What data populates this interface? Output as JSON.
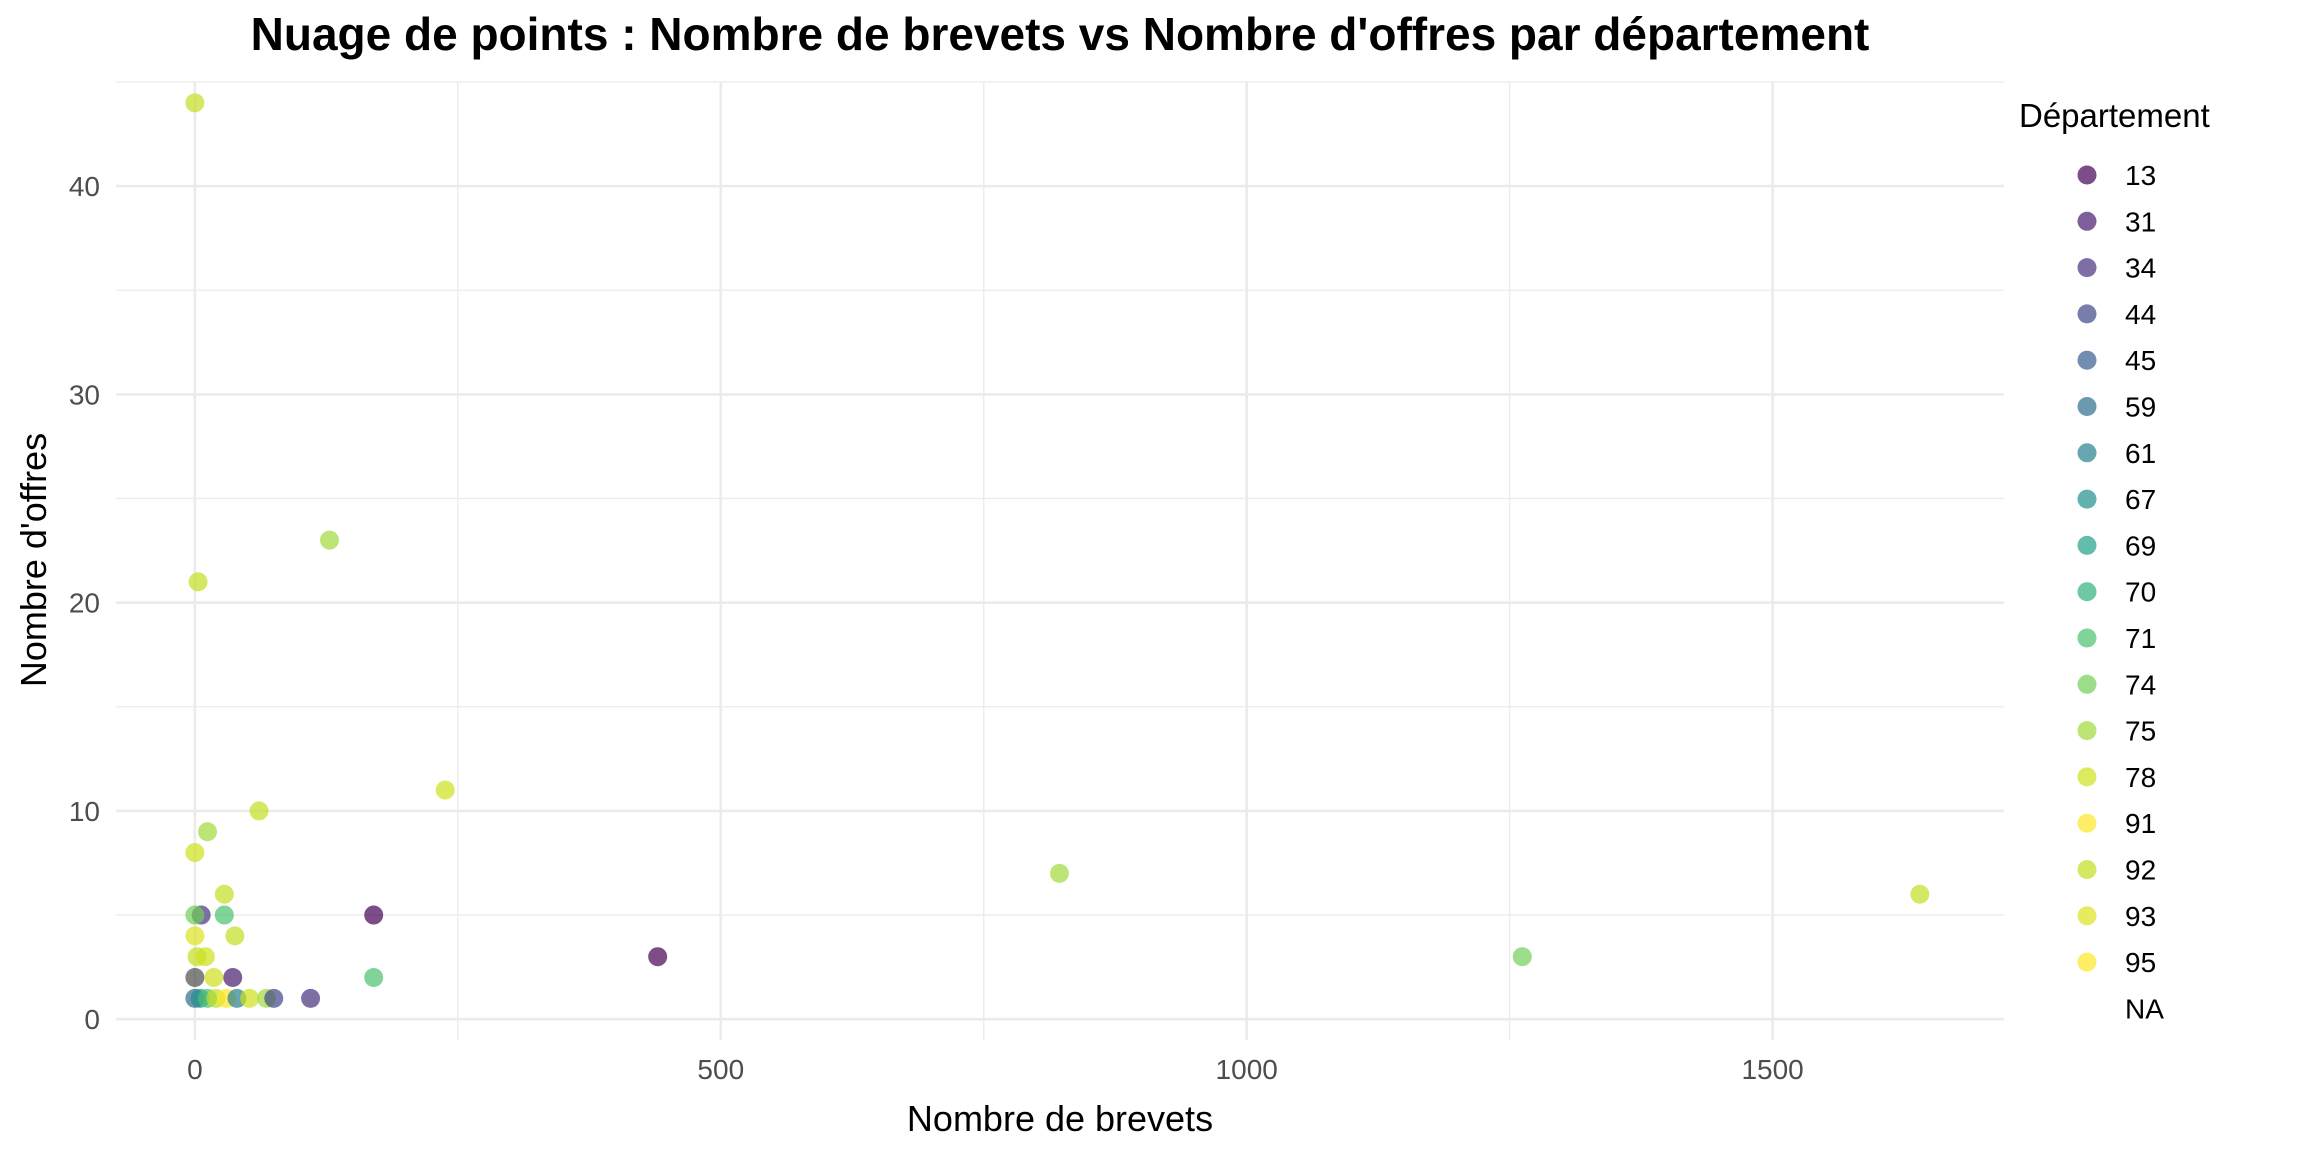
{
  "chart_data": {
    "type": "scatter",
    "title": "Nuage de points : Nombre de brevets vs Nombre d'offres par département",
    "xlabel": "Nombre de brevets",
    "ylabel": "Nombre d'offres",
    "xlim": [
      -75,
      1720
    ],
    "ylim": [
      -1,
      45
    ],
    "x_ticks": [
      0,
      500,
      1000,
      1500
    ],
    "y_ticks": [
      0,
      10,
      20,
      30,
      40
    ],
    "grid": true,
    "legend": {
      "title": "Département",
      "placement": "right",
      "entries": [
        "13",
        "31",
        "34",
        "44",
        "45",
        "59",
        "61",
        "67",
        "69",
        "70",
        "71",
        "74",
        "75",
        "78",
        "91",
        "92",
        "93",
        "95",
        "NA"
      ]
    },
    "colors": {
      "13": "#440154",
      "31": "#481B6D",
      "34": "#46327E",
      "44": "#3F4788",
      "45": "#365C8D",
      "59": "#2E6E8E",
      "61": "#277F8E",
      "67": "#21908C",
      "69": "#1FA187",
      "70": "#2DB27D",
      "71": "#4AC16D",
      "74": "#71CF57",
      "75": "#9FDA3A",
      "78": "#CFE11C",
      "91": "#FDE725",
      "92": "#C4DE21",
      "93": "#DBE31E",
      "95": "#FDE725",
      "NA": "#4D4D4D"
    },
    "point_opacity": 0.7,
    "points": [
      {
        "x": 0,
        "y": 44,
        "dept": "92"
      },
      {
        "x": 3,
        "y": 21,
        "dept": "92"
      },
      {
        "x": 128,
        "y": 23,
        "dept": "75"
      },
      {
        "x": 238,
        "y": 11,
        "dept": "78"
      },
      {
        "x": 61,
        "y": 10,
        "dept": "92"
      },
      {
        "x": 12,
        "y": 9,
        "dept": "75"
      },
      {
        "x": 0,
        "y": 8,
        "dept": "78"
      },
      {
        "x": 822,
        "y": 7,
        "dept": "75"
      },
      {
        "x": 1640,
        "y": 6,
        "dept": "92"
      },
      {
        "x": 28,
        "y": 6,
        "dept": "92"
      },
      {
        "x": 170,
        "y": 5,
        "dept": "13"
      },
      {
        "x": 6,
        "y": 5,
        "dept": "34"
      },
      {
        "x": 0,
        "y": 5,
        "dept": "74"
      },
      {
        "x": 28,
        "y": 5,
        "dept": "71"
      },
      {
        "x": 0,
        "y": 4,
        "dept": "93"
      },
      {
        "x": 38,
        "y": 4,
        "dept": "92"
      },
      {
        "x": 440,
        "y": 3,
        "dept": "13"
      },
      {
        "x": 1262,
        "y": 3,
        "dept": "74"
      },
      {
        "x": 2,
        "y": 3,
        "dept": "92"
      },
      {
        "x": 10,
        "y": 3,
        "dept": "78"
      },
      {
        "x": 0,
        "y": 2,
        "dept": "NA"
      },
      {
        "x": 18,
        "y": 2,
        "dept": "78"
      },
      {
        "x": 36,
        "y": 2,
        "dept": "31"
      },
      {
        "x": 170,
        "y": 2,
        "dept": "71"
      },
      {
        "x": 0,
        "y": 1,
        "dept": "59"
      },
      {
        "x": 5,
        "y": 1,
        "dept": "67"
      },
      {
        "x": 12,
        "y": 1,
        "dept": "71"
      },
      {
        "x": 20,
        "y": 1,
        "dept": "92"
      },
      {
        "x": 30,
        "y": 1,
        "dept": "95"
      },
      {
        "x": 40,
        "y": 1,
        "dept": "61"
      },
      {
        "x": 52,
        "y": 1,
        "dept": "78"
      },
      {
        "x": 68,
        "y": 1,
        "dept": "75"
      },
      {
        "x": 75,
        "y": 1,
        "dept": "44"
      },
      {
        "x": 110,
        "y": 1,
        "dept": "34"
      }
    ]
  }
}
